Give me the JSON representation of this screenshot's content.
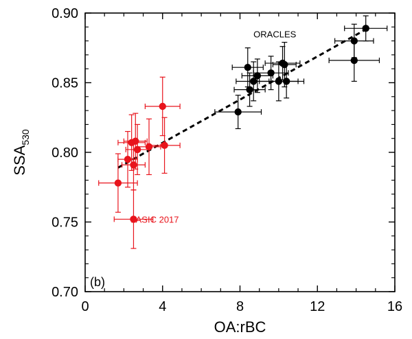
{
  "chart_data": {
    "type": "scatter",
    "panel_label": "(b)",
    "xlabel": "OA:rBC",
    "ylabel_main": "SSA",
    "ylabel_sub": "530",
    "xlim": [
      0,
      16
    ],
    "ylim": [
      0.7,
      0.9
    ],
    "xticks": [
      0,
      4,
      8,
      12,
      16
    ],
    "yticks": [
      0.7,
      0.75,
      0.8,
      0.85,
      0.9
    ],
    "ytick_labels": [
      "0.70",
      "0.75",
      "0.80",
      "0.85",
      "0.90"
    ],
    "grid": false,
    "series": [
      {
        "name": "ORACLES",
        "color": "#000000",
        "points": [
          {
            "x": 14.5,
            "y": 0.889,
            "xerr": 1.1,
            "yerr": 0.009
          },
          {
            "x": 13.9,
            "y": 0.88,
            "xerr": 1.0,
            "yerr": 0.012
          },
          {
            "x": 13.9,
            "y": 0.866,
            "xerr": 1.3,
            "yerr": 0.015
          },
          {
            "x": 8.4,
            "y": 0.861,
            "xerr": 0.8,
            "yerr": 0.014
          },
          {
            "x": 10.2,
            "y": 0.864,
            "xerr": 0.9,
            "yerr": 0.012
          },
          {
            "x": 10.3,
            "y": 0.863,
            "xerr": 0.6,
            "yerr": 0.016
          },
          {
            "x": 9.6,
            "y": 0.857,
            "xerr": 0.9,
            "yerr": 0.012
          },
          {
            "x": 8.9,
            "y": 0.855,
            "xerr": 0.8,
            "yerr": 0.012
          },
          {
            "x": 8.7,
            "y": 0.851,
            "xerr": 0.9,
            "yerr": 0.014
          },
          {
            "x": 10.0,
            "y": 0.851,
            "xerr": 1.0,
            "yerr": 0.014
          },
          {
            "x": 10.4,
            "y": 0.851,
            "xerr": 0.9,
            "yerr": 0.012
          },
          {
            "x": 8.5,
            "y": 0.845,
            "xerr": 0.8,
            "yerr": 0.012
          },
          {
            "x": 7.9,
            "y": 0.829,
            "xerr": 1.2,
            "yerr": 0.012
          }
        ]
      },
      {
        "name": "LASIC 2017",
        "color": "#e8141c",
        "points": [
          {
            "x": 4.0,
            "y": 0.833,
            "xerr": 0.9,
            "yerr": 0.021
          },
          {
            "x": 2.6,
            "y": 0.808,
            "xerr": 0.6,
            "yerr": 0.02
          },
          {
            "x": 2.4,
            "y": 0.807,
            "xerr": 0.7,
            "yerr": 0.02
          },
          {
            "x": 3.3,
            "y": 0.804,
            "xerr": 0.6,
            "yerr": 0.02
          },
          {
            "x": 4.1,
            "y": 0.805,
            "xerr": 0.8,
            "yerr": 0.02
          },
          {
            "x": 2.7,
            "y": 0.802,
            "xerr": 0.6,
            "yerr": 0.018
          },
          {
            "x": 2.2,
            "y": 0.795,
            "xerr": 0.5,
            "yerr": 0.02
          },
          {
            "x": 2.5,
            "y": 0.791,
            "xerr": 0.6,
            "yerr": 0.018
          },
          {
            "x": 1.7,
            "y": 0.778,
            "xerr": 1.0,
            "yerr": 0.021
          },
          {
            "x": 2.5,
            "y": 0.752,
            "xerr": 1.0,
            "yerr": 0.021
          }
        ]
      }
    ],
    "fit_line": {
      "style": "dashed",
      "color": "#000000",
      "x": [
        1.7,
        14.6
      ],
      "y": [
        0.789,
        0.889
      ]
    },
    "annotations": [
      {
        "text": "ORACLES",
        "x": 9.8,
        "y": 0.885,
        "color": "#000000"
      },
      {
        "text": "LASIC 2017",
        "x": 3.6,
        "y": 0.752,
        "color": "#e8141c"
      }
    ]
  }
}
